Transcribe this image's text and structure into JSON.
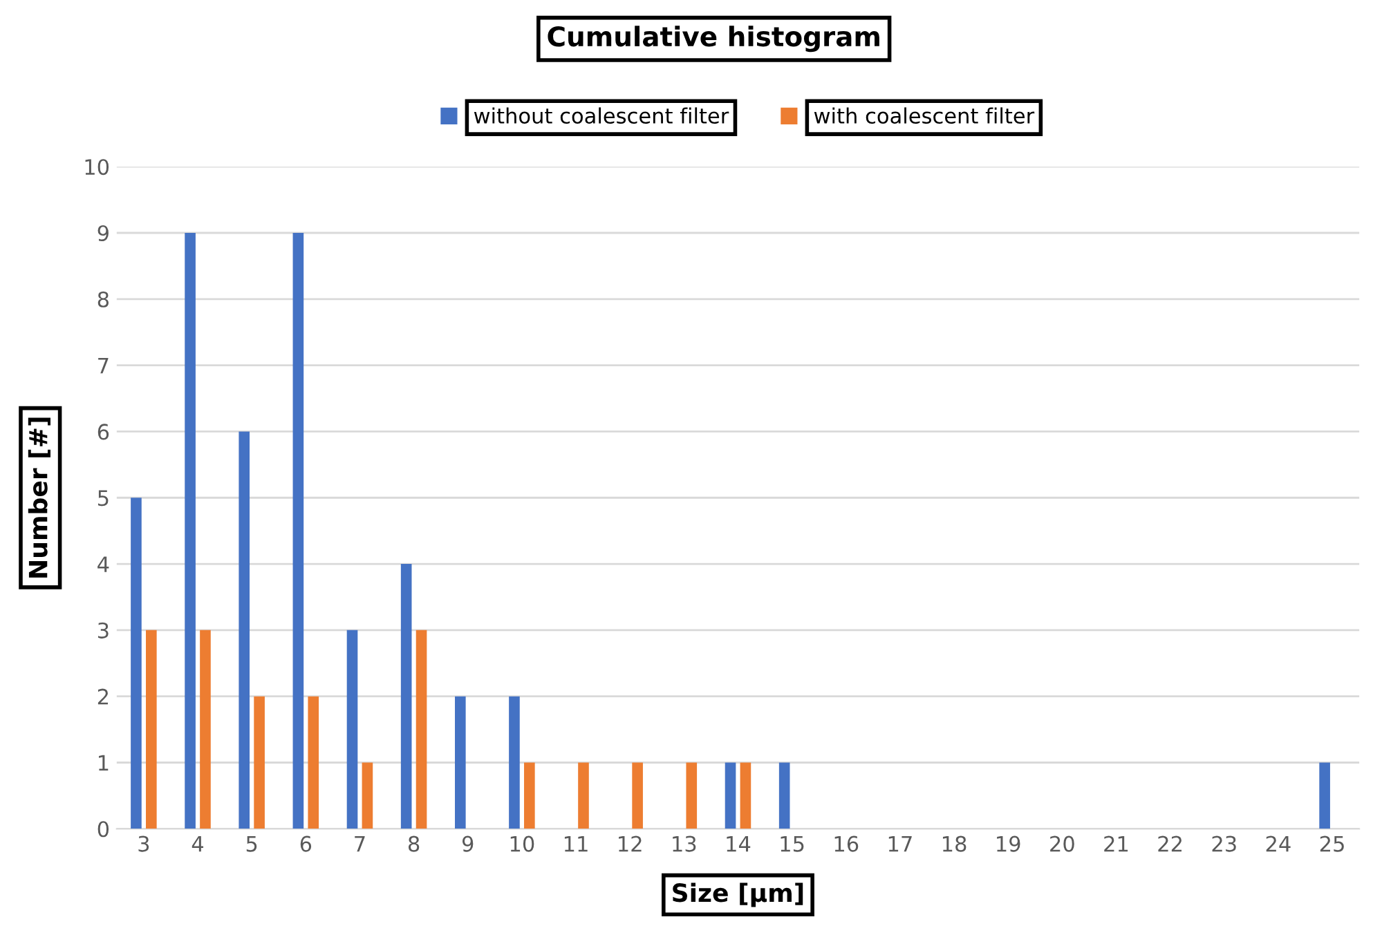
{
  "chart_data": {
    "type": "bar",
    "title": "Cumulative histogram",
    "xlabel": "Size [µm]",
    "ylabel": "Number [#]",
    "categories": [
      "3",
      "4",
      "5",
      "6",
      "7",
      "8",
      "9",
      "10",
      "11",
      "12",
      "13",
      "14",
      "15",
      "16",
      "17",
      "18",
      "19",
      "20",
      "21",
      "22",
      "23",
      "24",
      "25"
    ],
    "series": [
      {
        "name": "without coalescent filter",
        "color": "#4472c4",
        "values": [
          5,
          9,
          6,
          9,
          3,
          4,
          2,
          2,
          0,
          0,
          0,
          1,
          1,
          0,
          0,
          0,
          0,
          0,
          0,
          0,
          0,
          0,
          1
        ]
      },
      {
        "name": "with coalescent filter",
        "color": "#ed7d31",
        "values": [
          3,
          3,
          2,
          2,
          1,
          3,
          0,
          1,
          1,
          1,
          1,
          1,
          0,
          0,
          0,
          0,
          0,
          0,
          0,
          0,
          0,
          0,
          0
        ]
      }
    ],
    "ylim": [
      0,
      10
    ],
    "yticks": [
      0,
      1,
      2,
      3,
      4,
      5,
      6,
      7,
      8,
      9,
      10
    ],
    "grid": "y",
    "legend": "top"
  }
}
